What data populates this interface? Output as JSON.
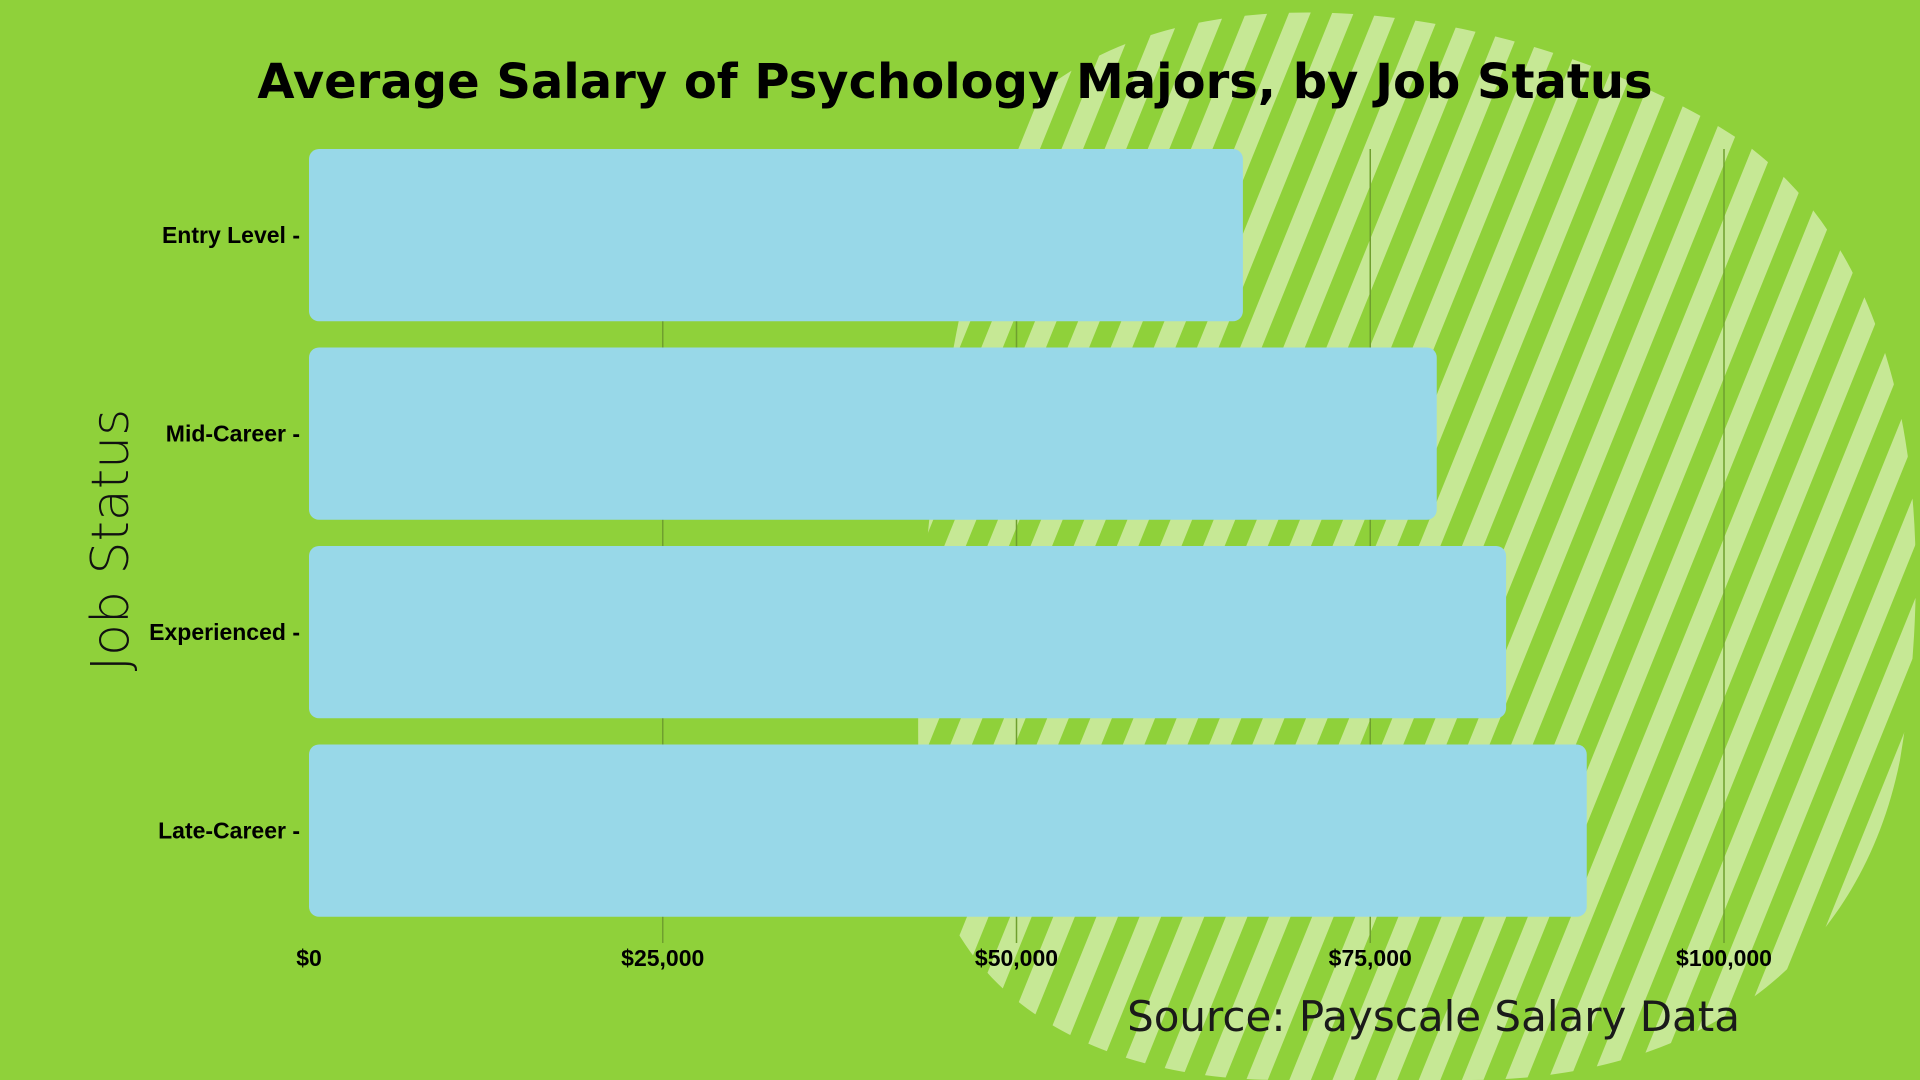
{
  "colors": {
    "background": "#8fd13a",
    "stripes": "#c6e895",
    "bar": "#98d8e8",
    "gridline": "#6f9f2e"
  },
  "chart_data": {
    "type": "bar",
    "orientation": "horizontal",
    "title": "Average Salary of Psychology Majors, by Job Status",
    "ylabel": "Job Status",
    "xlabel": "",
    "source": "Source: Payscale Salary Data",
    "categories": [
      "Entry Level",
      "Mid-Career",
      "Experienced",
      "Late-Career"
    ],
    "category_labels": [
      "Entry Level -",
      "Mid-Career -",
      "Experienced -",
      "Late-Career -"
    ],
    "values": [
      66000,
      79700,
      84600,
      90300
    ],
    "xlim": [
      0,
      100000
    ],
    "xticks": [
      0,
      25000,
      50000,
      75000,
      100000
    ],
    "xtick_labels": [
      "$0",
      "$25,000",
      "$50,000",
      "$75,000",
      "$100,000"
    ],
    "grid": "vertical",
    "legend": "none"
  }
}
